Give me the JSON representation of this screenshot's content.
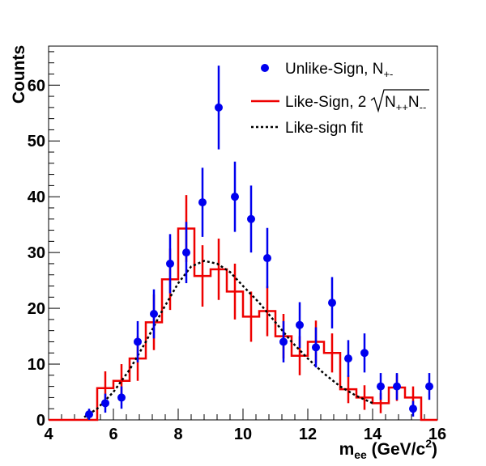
{
  "chart_data": {
    "type": "histogram-with-points",
    "xlabel": "m",
    "xlabel_sub": "ee",
    "xlabel_unit_prefix": " (GeV/c",
    "xlabel_unit_sup": "2",
    "xlabel_unit_suffix": ")",
    "ylabel": "Counts",
    "xlim": [
      4,
      16
    ],
    "ylim": [
      0,
      67
    ],
    "x_ticks": [
      4,
      6,
      8,
      10,
      12,
      14,
      16
    ],
    "y_ticks": [
      0,
      10,
      20,
      30,
      40,
      50,
      60
    ],
    "legend": {
      "placement": "top-right",
      "unlike_text": "Unlike-Sign, N",
      "unlike_sub": "+-",
      "like_text": "Like-Sign, 2",
      "like_sqrt": "N",
      "like_sqrt_sub1": "++",
      "like_sqrt_mid": "N",
      "like_sqrt_sub2": "--",
      "fit_text": "Like-sign fit"
    },
    "unlike_sign": {
      "color": "#0000ee",
      "points": [
        {
          "x": 5.25,
          "y": 1,
          "err": 1.0
        },
        {
          "x": 5.75,
          "y": 3,
          "err": 1.7
        },
        {
          "x": 6.25,
          "y": 4,
          "err": 2.0
        },
        {
          "x": 6.75,
          "y": 14,
          "err": 3.7
        },
        {
          "x": 7.25,
          "y": 19,
          "err": 4.4
        },
        {
          "x": 7.75,
          "y": 28,
          "err": 5.3
        },
        {
          "x": 8.25,
          "y": 30,
          "err": 5.5
        },
        {
          "x": 8.75,
          "y": 39,
          "err": 6.2
        },
        {
          "x": 9.25,
          "y": 56,
          "err": 7.5
        },
        {
          "x": 9.75,
          "y": 40,
          "err": 6.3
        },
        {
          "x": 10.25,
          "y": 36,
          "err": 6.0
        },
        {
          "x": 10.75,
          "y": 29,
          "err": 5.4
        },
        {
          "x": 11.25,
          "y": 14,
          "err": 3.7
        },
        {
          "x": 11.75,
          "y": 17,
          "err": 4.1
        },
        {
          "x": 12.25,
          "y": 13,
          "err": 3.6
        },
        {
          "x": 12.75,
          "y": 21,
          "err": 4.6
        },
        {
          "x": 13.25,
          "y": 11,
          "err": 3.3
        },
        {
          "x": 13.75,
          "y": 12,
          "err": 3.5
        },
        {
          "x": 14.25,
          "y": 6,
          "err": 2.4
        },
        {
          "x": 14.75,
          "y": 6,
          "err": 2.4
        },
        {
          "x": 15.25,
          "y": 2,
          "err": 1.4
        },
        {
          "x": 15.75,
          "y": 6,
          "err": 2.4
        }
      ]
    },
    "like_sign": {
      "color": "#ee0000",
      "bin_width": 0.5,
      "bins": [
        {
          "x0": 4.0,
          "y": 0,
          "err": 0
        },
        {
          "x0": 4.5,
          "y": 0,
          "err": 0
        },
        {
          "x0": 5.0,
          "y": 0,
          "err": 0
        },
        {
          "x0": 5.5,
          "y": 5.7,
          "err": 3.0
        },
        {
          "x0": 6.0,
          "y": 7.0,
          "err": 3.0
        },
        {
          "x0": 6.5,
          "y": 11.0,
          "err": 4.0
        },
        {
          "x0": 7.0,
          "y": 17.5,
          "err": 5.0
        },
        {
          "x0": 7.5,
          "y": 25.2,
          "err": 5.5
        },
        {
          "x0": 8.0,
          "y": 34.3,
          "err": 6.0
        },
        {
          "x0": 8.5,
          "y": 25.8,
          "err": 5.5
        },
        {
          "x0": 9.0,
          "y": 27.0,
          "err": 5.5
        },
        {
          "x0": 9.5,
          "y": 23.0,
          "err": 5.0
        },
        {
          "x0": 10.0,
          "y": 18.5,
          "err": 4.5
        },
        {
          "x0": 10.5,
          "y": 19.5,
          "err": 4.5
        },
        {
          "x0": 11.0,
          "y": 15.0,
          "err": 4.0
        },
        {
          "x0": 11.5,
          "y": 11.5,
          "err": 3.5
        },
        {
          "x0": 12.0,
          "y": 14.0,
          "err": 3.8
        },
        {
          "x0": 12.5,
          "y": 12.0,
          "err": 3.5
        },
        {
          "x0": 13.0,
          "y": 5.5,
          "err": 2.5
        },
        {
          "x0": 13.5,
          "y": 4.0,
          "err": 2.2
        },
        {
          "x0": 14.0,
          "y": 3.0,
          "err": 1.8
        },
        {
          "x0": 14.5,
          "y": 5.8,
          "err": 2.4
        },
        {
          "x0": 15.0,
          "y": 4.0,
          "err": 2.0
        },
        {
          "x0": 15.5,
          "y": 0,
          "err": 0
        }
      ]
    },
    "like_sign_fit": {
      "color": "#000000",
      "style": "dotted",
      "points": [
        [
          5.1,
          0.5
        ],
        [
          5.5,
          2.0
        ],
        [
          6.0,
          5.0
        ],
        [
          6.5,
          9.0
        ],
        [
          7.0,
          14.0
        ],
        [
          7.5,
          19.5
        ],
        [
          8.0,
          24.5
        ],
        [
          8.4,
          27.5
        ],
        [
          8.8,
          28.5
        ],
        [
          9.2,
          28.0
        ],
        [
          9.6,
          26.5
        ],
        [
          10.0,
          24.0
        ],
        [
          10.5,
          21.0
        ],
        [
          11.0,
          17.5
        ],
        [
          11.5,
          14.0
        ],
        [
          12.0,
          11.0
        ],
        [
          12.5,
          8.3
        ],
        [
          13.0,
          6.0
        ],
        [
          13.5,
          4.3
        ],
        [
          14.0,
          3.0
        ]
      ]
    }
  }
}
